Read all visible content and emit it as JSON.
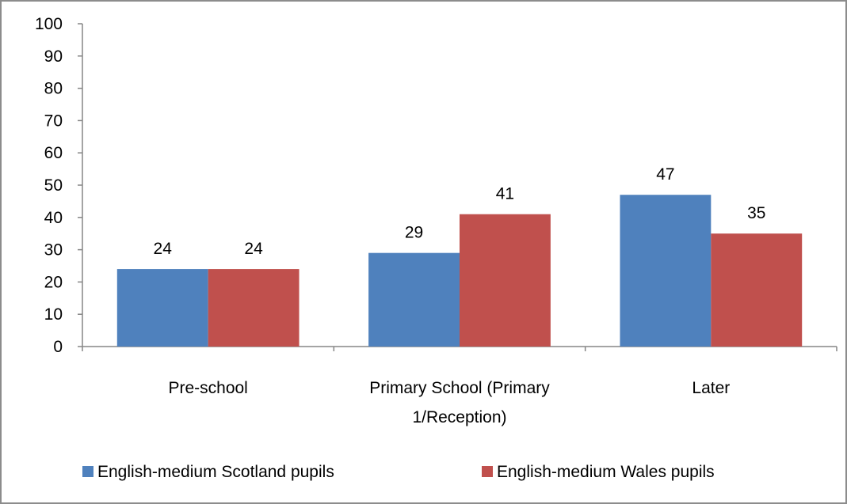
{
  "chart_data": {
    "type": "bar",
    "title": "",
    "xlabel": "",
    "ylabel": "",
    "categories": [
      [
        "Pre-school"
      ],
      [
        "Primary School (Primary",
        "1/Reception)"
      ],
      [
        "Later"
      ]
    ],
    "series": [
      {
        "name": "English-medium Scotland pupils",
        "color": "#4f81bd",
        "values": [
          24,
          29,
          47
        ]
      },
      {
        "name": "English-medium Wales pupils",
        "color": "#c0504d",
        "values": [
          24,
          41,
          35
        ]
      }
    ],
    "ylim": [
      0,
      100
    ],
    "yticks": [
      0,
      10,
      20,
      30,
      40,
      50,
      60,
      70,
      80,
      90,
      100
    ],
    "grid": false,
    "legend": "bottom"
  }
}
